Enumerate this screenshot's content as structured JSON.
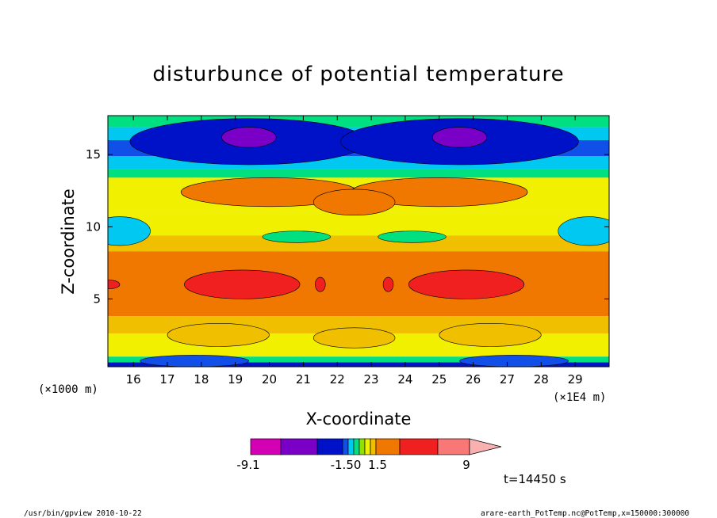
{
  "chart_data": {
    "type": "heatmap",
    "title": "disturbunce of potential temperature",
    "xlabel": "X-coordinate",
    "ylabel": "Z-coordinate",
    "x_units": "(×1E4 m)",
    "y_units": "(×1000 m)",
    "xlim": [
      15.25,
      30.0
    ],
    "ylim": [
      0.3,
      17.7
    ],
    "x_ticks": [
      16,
      17,
      18,
      19,
      20,
      21,
      22,
      23,
      24,
      25,
      26,
      27,
      28,
      29
    ],
    "y_ticks": [
      5,
      10,
      15
    ],
    "grid": false,
    "colorbar": {
      "labels": [
        "-9.1",
        "-1.50",
        "1.5",
        "9"
      ],
      "colors": [
        "#d400b4",
        "#7a00c8",
        "#0012c8",
        "#1050e8",
        "#00c8f0",
        "#00e080",
        "#90e000",
        "#f0f000",
        "#f0c000",
        "#f07800",
        "#f02020",
        "#f87878",
        "#f8b0b0"
      ],
      "extend": "max"
    },
    "annotation": "t=14450 s"
  },
  "footer": {
    "left": "/usr/bin/gpview  2010-10-22",
    "right": "arare-earth_PotTemp.nc@PotTemp,x=150000:300000"
  }
}
